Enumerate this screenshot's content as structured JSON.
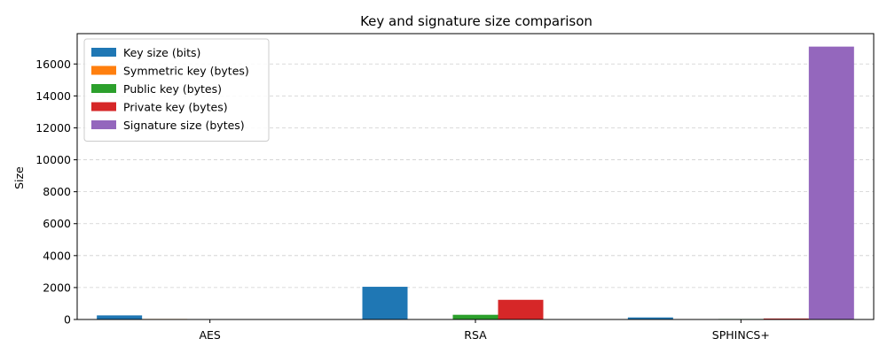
{
  "chart_data": {
    "type": "bar",
    "title": "Key and signature size comparison",
    "xlabel": "",
    "ylabel": "Size",
    "categories": [
      "AES",
      "RSA",
      "SPHINCS+"
    ],
    "ylim": [
      0,
      17900
    ],
    "yticks": [
      0,
      2000,
      4000,
      6000,
      8000,
      10000,
      12000,
      14000,
      16000
    ],
    "grid": true,
    "legend_position": "top-left",
    "series": [
      {
        "name": "Key size (bits)",
        "color": "#1f77b4",
        "values": [
          256,
          2048,
          128
        ]
      },
      {
        "name": "Symmetric key (bytes)",
        "color": "#ff7f0e",
        "values": [
          32,
          0,
          0
        ]
      },
      {
        "name": "Public key (bytes)",
        "color": "#2ca02c",
        "values": [
          0,
          294,
          32
        ]
      },
      {
        "name": "Private key (bytes)",
        "color": "#d62728",
        "values": [
          0,
          1232,
          64
        ]
      },
      {
        "name": "Signature size (bytes)",
        "color": "#9467bd",
        "values": [
          0,
          0,
          17088
        ]
      }
    ]
  }
}
